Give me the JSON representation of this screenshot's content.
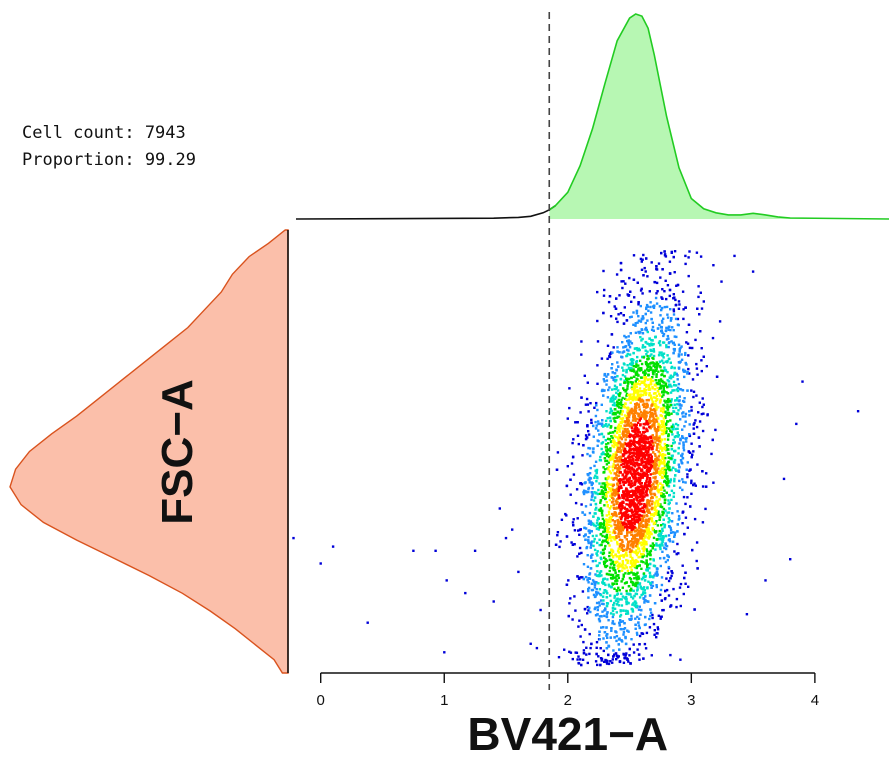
{
  "stats": {
    "cell_count_line": "Cell count: 7943",
    "proportion_line": "Proportion: 99.29"
  },
  "chart_data": {
    "type": "scatter",
    "xlabel": "BV421−A",
    "ylabel": "FSC−A",
    "xlim": [
      -0.2,
      4.6
    ],
    "x_ticks": [
      0,
      1,
      2,
      3,
      4
    ],
    "x_tick_labels": [
      "0",
      "1",
      "2",
      "3",
      "4"
    ],
    "gate_threshold_x": 1.85,
    "cell_count": 7943,
    "proportion": 99.29,
    "density_colormap": [
      "#0000d8",
      "#1e90ff",
      "#00e0c8",
      "#00e000",
      "#ffff00",
      "#ff8000",
      "#ff0000"
    ],
    "x_density": {
      "color_fill": "#b7f7b3",
      "color_line": "#22cc22",
      "x": [
        -0.2,
        1.4,
        1.6,
        1.7,
        1.8,
        1.85,
        1.9,
        2.0,
        2.1,
        2.2,
        2.3,
        2.4,
        2.5,
        2.55,
        2.6,
        2.65,
        2.7,
        2.8,
        2.9,
        3.0,
        3.1,
        3.2,
        3.3,
        3.4,
        3.5,
        3.6,
        3.7,
        3.8,
        4.6
      ],
      "density": [
        0.0,
        0.004,
        0.008,
        0.013,
        0.03,
        0.045,
        0.065,
        0.13,
        0.26,
        0.44,
        0.66,
        0.87,
        0.98,
        1.0,
        0.99,
        0.93,
        0.8,
        0.5,
        0.25,
        0.1,
        0.05,
        0.03,
        0.02,
        0.02,
        0.028,
        0.02,
        0.01,
        0.005,
        0.0
      ]
    },
    "y_density": {
      "color_fill": "#fbbfaa",
      "color_line": "#d9531e",
      "y": [
        0.0,
        0.03,
        0.06,
        0.1,
        0.14,
        0.18,
        0.22,
        0.26,
        0.3,
        0.34,
        0.38,
        0.42,
        0.46,
        0.5,
        0.54,
        0.58,
        0.62,
        0.66,
        0.7,
        0.74,
        0.78,
        0.82,
        0.86,
        0.9,
        0.94,
        0.97,
        1.0
      ],
      "density": [
        0.02,
        0.05,
        0.11,
        0.19,
        0.28,
        0.38,
        0.5,
        0.63,
        0.76,
        0.88,
        0.96,
        1.0,
        0.98,
        0.93,
        0.85,
        0.76,
        0.68,
        0.6,
        0.52,
        0.44,
        0.36,
        0.3,
        0.24,
        0.2,
        0.14,
        0.07,
        0.01
      ]
    },
    "events": {
      "n_rendered": 5200,
      "center_x": 2.55,
      "center_y": 0.45,
      "sd_x": 0.21,
      "sd_y": 0.2,
      "correlation": 0.35,
      "outliers": [
        [
          -0.22,
          0.3
        ],
        [
          0.1,
          0.28
        ],
        [
          0.0,
          0.24
        ],
        [
          0.38,
          0.1
        ],
        [
          0.75,
          0.27
        ],
        [
          0.93,
          0.27
        ],
        [
          1.25,
          0.27
        ],
        [
          1.0,
          0.03
        ],
        [
          1.02,
          0.2
        ],
        [
          1.17,
          0.17
        ],
        [
          1.4,
          0.15
        ],
        [
          1.45,
          0.37
        ],
        [
          1.5,
          0.3
        ],
        [
          1.55,
          0.32
        ],
        [
          1.6,
          0.22
        ],
        [
          1.78,
          0.13
        ],
        [
          1.75,
          0.04
        ],
        [
          1.7,
          0.05
        ],
        [
          3.45,
          0.12
        ],
        [
          3.6,
          0.2
        ],
        [
          3.8,
          0.25
        ],
        [
          3.85,
          0.57
        ],
        [
          3.9,
          0.67
        ],
        [
          4.35,
          0.6
        ],
        [
          3.75,
          0.44
        ],
        [
          3.5,
          0.93
        ]
      ]
    }
  }
}
